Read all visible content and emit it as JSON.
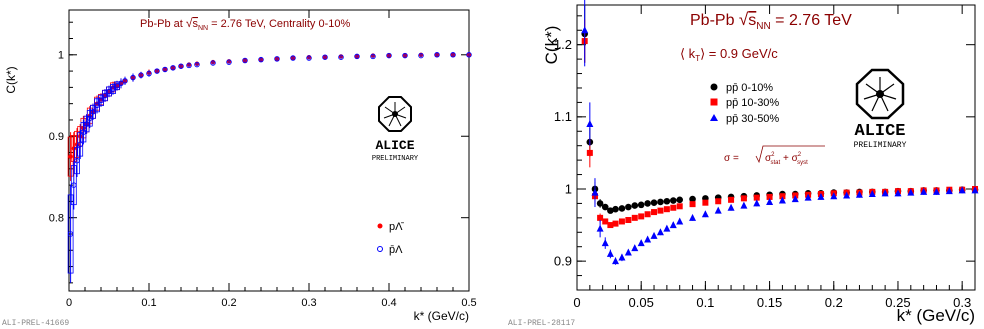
{
  "chart_data": [
    {
      "type": "scatter",
      "tag": "ALI-PREL-41669",
      "title_parts": {
        "pre": "Pb-Pb at ",
        "sqrt": "s",
        "sub": "NN",
        "post": " = 2.76 TeV, Centrality 0-10%"
      },
      "xlabel": "k* (GeV/c)",
      "ylabel": "C(k*)",
      "xlim": [
        0,
        0.5
      ],
      "ylim": [
        0.71,
        1.055
      ],
      "xticks": [
        0,
        0.1,
        0.2,
        0.3,
        0.4,
        0.5
      ],
      "xtick_labels": [
        "0",
        "0.1",
        "0.2",
        "0.3",
        "0.4",
        "0.5"
      ],
      "yticks": [
        0.8,
        0.9,
        1.0
      ],
      "ytick_labels": [
        "0.8",
        "0.9",
        "1"
      ],
      "logo": {
        "name": "ALICE",
        "sub": "PRELIMINARY"
      },
      "colors": {
        "red": "#ff0000",
        "blue": "#0000ff",
        "title": "#8b0000"
      },
      "series": [
        {
          "name": "pΛ̄",
          "marker": "filled-circle",
          "color": "#ff0000",
          "x": [
            0.002,
            0.006,
            0.01,
            0.014,
            0.018,
            0.022,
            0.026,
            0.03,
            0.035,
            0.04,
            0.045,
            0.05,
            0.055,
            0.06,
            0.065,
            0.07,
            0.08,
            0.09,
            0.1,
            0.11,
            0.12,
            0.13,
            0.14,
            0.15,
            0.16,
            0.18,
            0.2,
            0.22,
            0.24,
            0.26,
            0.28,
            0.3,
            0.32,
            0.34,
            0.36,
            0.38,
            0.4,
            0.42,
            0.44,
            0.46,
            0.48,
            0.5
          ],
          "y": [
            0.875,
            0.885,
            0.89,
            0.9,
            0.91,
            0.915,
            0.925,
            0.93,
            0.94,
            0.945,
            0.95,
            0.955,
            0.96,
            0.962,
            0.965,
            0.968,
            0.972,
            0.975,
            0.978,
            0.98,
            0.982,
            0.984,
            0.986,
            0.988,
            0.989,
            0.991,
            0.992,
            0.993,
            0.994,
            0.995,
            0.996,
            0.997,
            0.997,
            0.998,
            0.998,
            0.999,
            0.999,
            0.999,
            1.0,
            1.0,
            1.0,
            1.0
          ],
          "err": [
            0.03,
            0.02,
            0.02,
            0.015,
            0.015,
            0.012,
            0.012,
            0.01,
            0.01,
            0.008,
            0.008,
            0.007,
            0.007,
            0.006,
            0.006,
            0.005,
            0.005,
            0.004,
            0.004,
            0.003,
            0.003,
            0.003,
            0.003,
            0.002,
            0.002,
            0.002,
            0.002,
            0.002,
            0.002,
            0.002,
            0.002,
            0.002,
            0.002,
            0.002,
            0.002,
            0.002,
            0.002,
            0.002,
            0.002,
            0.002,
            0.002,
            0.002
          ]
        },
        {
          "name": "p̄Λ",
          "marker": "open-circle",
          "color": "#0000ff",
          "x": [
            0.002,
            0.006,
            0.01,
            0.014,
            0.018,
            0.022,
            0.026,
            0.03,
            0.035,
            0.04,
            0.045,
            0.05,
            0.055,
            0.06,
            0.065,
            0.07,
            0.08,
            0.09,
            0.1,
            0.11,
            0.12,
            0.13,
            0.14,
            0.15,
            0.16,
            0.18,
            0.2,
            0.22,
            0.24,
            0.26,
            0.28,
            0.3,
            0.32,
            0.34,
            0.36,
            0.38,
            0.4,
            0.42,
            0.44,
            0.46,
            0.48,
            0.5
          ],
          "y": [
            0.78,
            0.84,
            0.87,
            0.89,
            0.905,
            0.915,
            0.922,
            0.93,
            0.938,
            0.944,
            0.95,
            0.955,
            0.958,
            0.962,
            0.965,
            0.968,
            0.972,
            0.975,
            0.977,
            0.98,
            0.982,
            0.984,
            0.986,
            0.987,
            0.988,
            0.99,
            0.991,
            0.993,
            0.994,
            0.995,
            0.996,
            0.996,
            0.997,
            0.997,
            0.998,
            0.998,
            0.999,
            0.999,
            0.999,
            1.0,
            1.0,
            1.0
          ],
          "err": [
            0.06,
            0.03,
            0.02,
            0.018,
            0.015,
            0.012,
            0.012,
            0.01,
            0.01,
            0.008,
            0.008,
            0.007,
            0.007,
            0.006,
            0.006,
            0.005,
            0.005,
            0.004,
            0.004,
            0.003,
            0.003,
            0.003,
            0.003,
            0.002,
            0.002,
            0.002,
            0.002,
            0.002,
            0.002,
            0.002,
            0.002,
            0.002,
            0.002,
            0.002,
            0.002,
            0.002,
            0.002,
            0.002,
            0.002,
            0.002,
            0.002,
            0.002
          ]
        }
      ]
    },
    {
      "type": "scatter",
      "tag": "ALI-PREL-28117",
      "title_parts": {
        "pre": "Pb-Pb ",
        "sqrt": "s",
        "sub": "NN",
        "post": " = 2.76 TeV"
      },
      "kt_label": {
        "pre": "⟨ k",
        "sub": "T",
        "post": "⟩ = 0.9 GeV/c"
      },
      "sigma_label": {
        "pre": "σ = ",
        "a": "σ",
        "a_sup": "2",
        "a_sub": "stat",
        "mid": " + ",
        "b": "σ",
        "b_sup": "2",
        "b_sub": "syst"
      },
      "xlabel": "k* (GeV/c)",
      "ylabel": "C(k*)",
      "xlim": [
        0,
        0.31
      ],
      "ylim": [
        0.86,
        1.255
      ],
      "xticks": [
        0,
        0.05,
        0.1,
        0.15,
        0.2,
        0.25,
        0.3
      ],
      "xtick_labels": [
        "0",
        "0.05",
        "0.1",
        "0.15",
        "0.2",
        "0.25",
        "0.3"
      ],
      "yticks": [
        0.9,
        1.0,
        1.1,
        1.2
      ],
      "ytick_labels": [
        "0.9",
        "1",
        "1.1",
        "1.2"
      ],
      "logo": {
        "name": "ALICE",
        "sub": "PRELIMINARY"
      },
      "colors": {
        "black": "#000000",
        "red": "#ff0000",
        "blue": "#0000ff",
        "title": "#8b0000"
      },
      "series": [
        {
          "name": "pp̄ 0-10%",
          "marker": "filled-circle",
          "color": "#000000",
          "x": [
            0.006,
            0.01,
            0.014,
            0.018,
            0.022,
            0.026,
            0.03,
            0.035,
            0.04,
            0.045,
            0.05,
            0.055,
            0.06,
            0.065,
            0.07,
            0.075,
            0.08,
            0.09,
            0.1,
            0.11,
            0.12,
            0.13,
            0.14,
            0.15,
            0.16,
            0.17,
            0.18,
            0.19,
            0.2,
            0.21,
            0.22,
            0.23,
            0.24,
            0.25,
            0.26,
            0.27,
            0.28,
            0.29,
            0.3,
            0.31
          ],
          "y": [
            1.215,
            1.065,
            1.0,
            0.98,
            0.975,
            0.97,
            0.972,
            0.973,
            0.975,
            0.977,
            0.978,
            0.98,
            0.981,
            0.982,
            0.983,
            0.984,
            0.985,
            0.986,
            0.987,
            0.988,
            0.989,
            0.99,
            0.991,
            0.992,
            0.993,
            0.993,
            0.994,
            0.994,
            0.995,
            0.995,
            0.996,
            0.996,
            0.996,
            0.997,
            0.997,
            0.998,
            0.998,
            0.998,
            0.999,
            0.999
          ],
          "err": [
            0.04,
            0.02,
            0.01,
            0.006,
            0.004,
            0.003,
            0.003,
            0.003,
            0.003,
            0.003,
            0.003,
            0.003,
            0.003,
            0.003,
            0.003,
            0.003,
            0.003,
            0.003,
            0.003,
            0.003,
            0.003,
            0.003,
            0.003,
            0.003,
            0.003,
            0.003,
            0.003,
            0.003,
            0.003,
            0.003,
            0.003,
            0.003,
            0.003,
            0.003,
            0.003,
            0.003,
            0.003,
            0.003,
            0.003,
            0.003
          ]
        },
        {
          "name": "pp̄ 10-30%",
          "marker": "filled-square",
          "color": "#ff0000",
          "x": [
            0.006,
            0.01,
            0.014,
            0.018,
            0.022,
            0.026,
            0.03,
            0.035,
            0.04,
            0.045,
            0.05,
            0.055,
            0.06,
            0.065,
            0.07,
            0.075,
            0.08,
            0.09,
            0.1,
            0.11,
            0.12,
            0.13,
            0.14,
            0.15,
            0.16,
            0.17,
            0.18,
            0.19,
            0.2,
            0.21,
            0.22,
            0.23,
            0.24,
            0.25,
            0.26,
            0.27,
            0.28,
            0.29,
            0.3,
            0.31
          ],
          "y": [
            1.205,
            1.05,
            0.99,
            0.96,
            0.955,
            0.95,
            0.952,
            0.955,
            0.957,
            0.96,
            0.962,
            0.965,
            0.968,
            0.97,
            0.972,
            0.974,
            0.976,
            0.979,
            0.981,
            0.983,
            0.985,
            0.987,
            0.988,
            0.989,
            0.99,
            0.991,
            0.992,
            0.993,
            0.994,
            0.995,
            0.995,
            0.996,
            0.996,
            0.997,
            0.997,
            0.998,
            0.998,
            0.999,
            0.999,
            1.0
          ],
          "err": [
            0.03,
            0.02,
            0.01,
            0.006,
            0.004,
            0.003,
            0.003,
            0.003,
            0.003,
            0.003,
            0.003,
            0.003,
            0.003,
            0.003,
            0.003,
            0.003,
            0.003,
            0.003,
            0.003,
            0.003,
            0.003,
            0.003,
            0.003,
            0.003,
            0.003,
            0.003,
            0.003,
            0.003,
            0.003,
            0.003,
            0.003,
            0.003,
            0.003,
            0.003,
            0.003,
            0.003,
            0.003,
            0.003,
            0.003,
            0.003
          ]
        },
        {
          "name": "pp̄ 30-50%",
          "marker": "filled-triangle",
          "color": "#0000ff",
          "x": [
            0.006,
            0.01,
            0.014,
            0.018,
            0.022,
            0.026,
            0.03,
            0.035,
            0.04,
            0.045,
            0.05,
            0.055,
            0.06,
            0.065,
            0.07,
            0.075,
            0.08,
            0.09,
            0.1,
            0.11,
            0.12,
            0.13,
            0.14,
            0.15,
            0.16,
            0.17,
            0.18,
            0.19,
            0.2,
            0.21,
            0.22,
            0.23,
            0.24,
            0.25,
            0.26,
            0.27,
            0.28,
            0.29,
            0.3,
            0.31
          ],
          "y": [
            1.22,
            1.09,
            0.995,
            0.945,
            0.925,
            0.91,
            0.9,
            0.905,
            0.912,
            0.918,
            0.925,
            0.93,
            0.935,
            0.94,
            0.945,
            0.95,
            0.955,
            0.96,
            0.965,
            0.97,
            0.974,
            0.977,
            0.98,
            0.982,
            0.984,
            0.986,
            0.988,
            0.989,
            0.99,
            0.991,
            0.992,
            0.993,
            0.994,
            0.994,
            0.995,
            0.996,
            0.996,
            0.997,
            0.998,
            0.998
          ],
          "err": [
            0.05,
            0.03,
            0.02,
            0.012,
            0.008,
            0.006,
            0.005,
            0.005,
            0.004,
            0.004,
            0.004,
            0.004,
            0.004,
            0.004,
            0.004,
            0.004,
            0.004,
            0.004,
            0.004,
            0.004,
            0.004,
            0.004,
            0.004,
            0.004,
            0.004,
            0.004,
            0.004,
            0.004,
            0.004,
            0.004,
            0.004,
            0.004,
            0.004,
            0.004,
            0.004,
            0.004,
            0.004,
            0.004,
            0.004,
            0.004
          ]
        }
      ]
    }
  ]
}
